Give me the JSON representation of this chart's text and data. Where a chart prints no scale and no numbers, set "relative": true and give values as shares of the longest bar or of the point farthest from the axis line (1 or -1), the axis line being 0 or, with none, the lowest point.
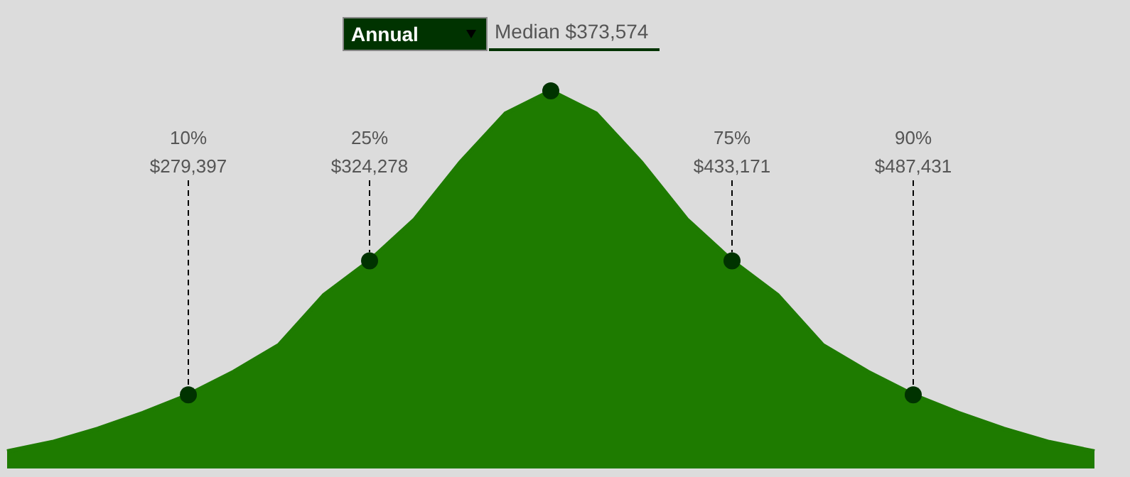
{
  "chart_data": {
    "type": "area",
    "relative": true,
    "title": "Median $373,574",
    "subtitle": "Annual",
    "legend": false,
    "categories": [
      null,
      null,
      null,
      null,
      null,
      null,
      null,
      null,
      null,
      null,
      null,
      null,
      null,
      null,
      null,
      null,
      null,
      null,
      null,
      null,
      null,
      null,
      null,
      null,
      null
    ],
    "series": [
      {
        "color": "#1e7b00",
        "values": [
          0.045,
          0.07,
          0.105,
          0.147,
          0.195,
          0.256,
          0.327,
          0.46,
          0.55,
          0.66,
          0.81,
          0.94,
          1,
          0.94,
          0.81,
          0.66,
          0.55,
          0.46,
          0.327,
          0.256,
          0.195,
          0.147,
          0.105,
          0.07,
          0.045
        ]
      }
    ],
    "annotations": [
      {
        "text": "10%\n$279,397",
        "y": 0.195
      },
      {
        "text": "25%\n$324,278",
        "y": 0.55
      },
      {
        "text": "75%\n$433,171",
        "y": 0.55
      },
      {
        "text": "90%\n$487,431",
        "y": 0.195
      }
    ]
  }
}
